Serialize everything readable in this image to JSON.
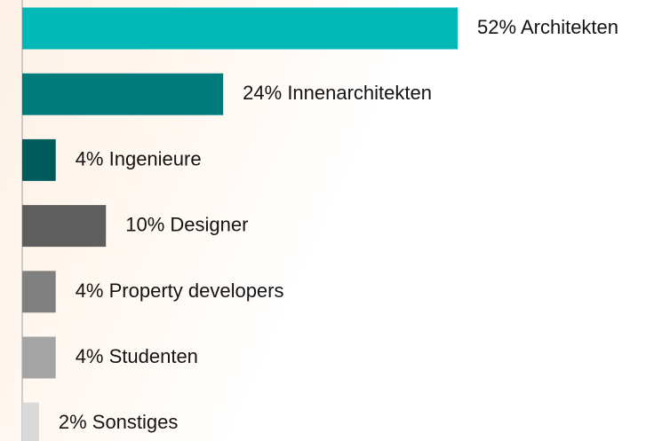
{
  "chart_data": {
    "type": "bar",
    "orientation": "horizontal",
    "categories": [
      "Architekten",
      "Innenarchitekten",
      "Ingenieure",
      "Designer",
      "Property developers",
      "Studenten",
      "Sonstiges"
    ],
    "values": [
      52,
      24,
      4,
      10,
      4,
      4,
      2
    ],
    "value_labels": [
      "52%",
      "24%",
      "4%",
      "10%",
      "4%",
      "4%",
      "2%"
    ],
    "colors": [
      "#00b9b6",
      "#007b7b",
      "#005b5c",
      "#5e5e5e",
      "#808080",
      "#a4a4a4",
      "#d9d9d9"
    ]
  }
}
